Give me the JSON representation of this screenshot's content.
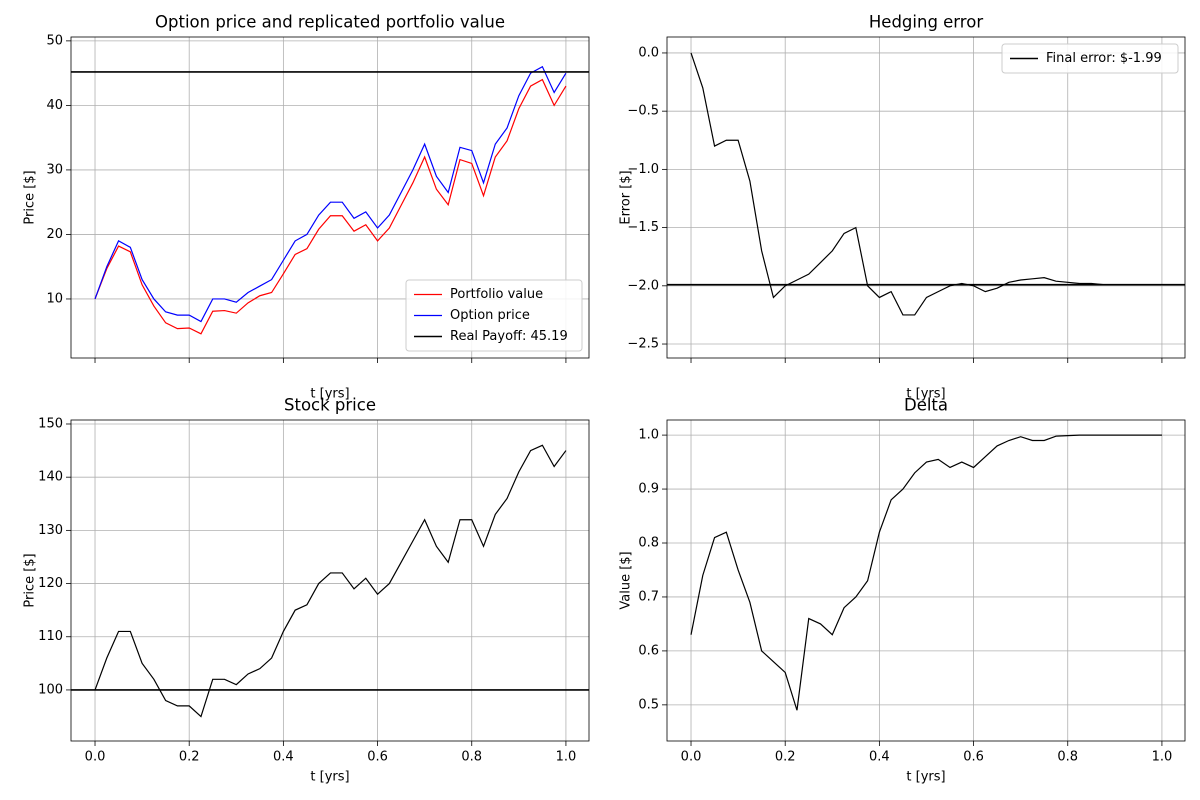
{
  "chart_data": [
    {
      "type": "line",
      "title": "Option price and replicated portfolio value",
      "xlabel": "t [yrs]",
      "ylabel": "Price [$]",
      "x": [
        0,
        0.025,
        0.05,
        0.075,
        0.1,
        0.125,
        0.15,
        0.175,
        0.2,
        0.225,
        0.25,
        0.275,
        0.3,
        0.325,
        0.35,
        0.375,
        0.4,
        0.425,
        0.45,
        0.475,
        0.5,
        0.525,
        0.55,
        0.575,
        0.6,
        0.625,
        0.65,
        0.675,
        0.7,
        0.725,
        0.75,
        0.775,
        0.8,
        0.825,
        0.85,
        0.875,
        0.9,
        0.925,
        0.95,
        0.975,
        1.0
      ],
      "series": [
        {
          "name": "Portfolio value",
          "color": "#ff0000",
          "values": [
            10,
            14.7,
            18.2,
            17.3,
            12.2,
            8.9,
            6.3,
            5.4,
            5.5,
            4.6,
            8.1,
            8.2,
            7.8,
            9.4,
            10.5,
            11,
            13.9,
            16.9,
            17.8,
            20.8,
            22.9,
            22.9,
            20.5,
            21.5,
            19,
            21,
            24.5,
            28,
            32,
            27,
            24.6,
            31.6,
            31,
            26,
            32,
            34.5,
            39.5,
            43,
            44,
            40,
            43
          ]
        },
        {
          "name": "Option price",
          "color": "#0000ff",
          "values": [
            10,
            15,
            19,
            18,
            13,
            10,
            8,
            7.5,
            7.5,
            6.5,
            10,
            10,
            9.5,
            11,
            12,
            13,
            16,
            19,
            20,
            23,
            25,
            25,
            22.5,
            23.5,
            21,
            23,
            26.5,
            30,
            34,
            29,
            26.5,
            33.5,
            33,
            28,
            34,
            36.5,
            41.5,
            45,
            46,
            42,
            45
          ]
        }
      ],
      "hlines": [
        {
          "name": "Real Payoff: 45.19",
          "value": 45.19,
          "color": "#000000"
        }
      ],
      "legend": "lower right",
      "grid": true,
      "show_xtick_labels": false,
      "xlim": [
        -0.051,
        1.049
      ],
      "xticks": [
        0,
        0.2,
        0.4,
        0.6,
        0.8,
        1
      ],
      "ylim": [
        0.85,
        50.6
      ],
      "yticks": [
        10,
        20,
        30,
        40,
        50
      ]
    },
    {
      "type": "line",
      "title": "Hedging error",
      "xlabel": "t [yrs]",
      "ylabel": "Error [$]",
      "x": [
        0,
        0.025,
        0.05,
        0.075,
        0.1,
        0.125,
        0.15,
        0.175,
        0.2,
        0.225,
        0.25,
        0.275,
        0.3,
        0.325,
        0.35,
        0.375,
        0.4,
        0.425,
        0.45,
        0.475,
        0.5,
        0.525,
        0.55,
        0.575,
        0.6,
        0.625,
        0.65,
        0.675,
        0.7,
        0.725,
        0.75,
        0.775,
        0.8,
        0.825,
        0.85,
        0.875,
        0.9,
        0.925,
        0.95,
        0.975,
        1.0
      ],
      "series": [
        {
          "color": "#000000",
          "values": [
            0,
            -0.3,
            -0.8,
            -0.75,
            -0.75,
            -1.1,
            -1.7,
            -2.1,
            -2.0,
            -1.95,
            -1.9,
            -1.8,
            -1.7,
            -1.55,
            -1.5,
            -2.0,
            -2.1,
            -2.05,
            -2.25,
            -2.25,
            -2.1,
            -2.05,
            -2.0,
            -1.98,
            -2.0,
            -2.05,
            -2.02,
            -1.97,
            -1.95,
            -1.94,
            -1.93,
            -1.96,
            -1.97,
            -1.98,
            -1.98,
            -1.99,
            -1.99,
            -1.99,
            -1.99,
            -1.99,
            -1.99
          ]
        }
      ],
      "hlines": [
        {
          "name": "Final error: $-1.99",
          "value": -1.99,
          "color": "#000000"
        }
      ],
      "legend": "upper right",
      "grid": true,
      "show_xtick_labels": false,
      "xlim": [
        -0.051,
        1.049
      ],
      "xticks": [
        0,
        0.2,
        0.4,
        0.6,
        0.8,
        1
      ],
      "ylim": [
        -2.62,
        0.137
      ],
      "yticks": [
        {
          "value": 0,
          "label": "0.0"
        },
        {
          "value": -0.5,
          "label": "−0.5"
        },
        {
          "value": -1,
          "label": "−1.0"
        },
        {
          "value": -1.5,
          "label": "−1.5"
        },
        {
          "value": -2,
          "label": "−2.0"
        },
        {
          "value": -2.5,
          "label": "−2.5"
        }
      ]
    },
    {
      "type": "line",
      "title": "Stock price",
      "xlabel": "t [yrs]",
      "ylabel": "Price [$]",
      "x": [
        0,
        0.025,
        0.05,
        0.075,
        0.1,
        0.125,
        0.15,
        0.175,
        0.2,
        0.225,
        0.25,
        0.275,
        0.3,
        0.325,
        0.35,
        0.375,
        0.4,
        0.425,
        0.45,
        0.475,
        0.5,
        0.525,
        0.55,
        0.575,
        0.6,
        0.625,
        0.65,
        0.675,
        0.7,
        0.725,
        0.75,
        0.775,
        0.8,
        0.825,
        0.85,
        0.875,
        0.9,
        0.925,
        0.95,
        0.975,
        1.0
      ],
      "series": [
        {
          "color": "#000000",
          "values": [
            100,
            106,
            111,
            111,
            105,
            102,
            98,
            97,
            97,
            95,
            102,
            102,
            101,
            103,
            104,
            106,
            111,
            115,
            116,
            120,
            122,
            122,
            119,
            121,
            118,
            120,
            124,
            128,
            132,
            127,
            124,
            132,
            132,
            127,
            133,
            136,
            141,
            145,
            146,
            142,
            145
          ]
        }
      ],
      "hlines": [
        {
          "value": 100,
          "color": "#000000"
        }
      ],
      "grid": true,
      "show_xtick_labels": true,
      "xlim": [
        -0.051,
        1.049
      ],
      "xticks": [
        {
          "value": 0,
          "label": "0.0"
        },
        0.2,
        0.4,
        0.6,
        0.8,
        {
          "value": 1,
          "label": "1.0"
        }
      ],
      "ylim": [
        90.4,
        150.75
      ],
      "yticks": [
        100,
        110,
        120,
        130,
        140,
        150
      ]
    },
    {
      "type": "line",
      "title": "Delta",
      "xlabel": "t [yrs]",
      "ylabel": "Value [$]",
      "x": [
        0,
        0.025,
        0.05,
        0.075,
        0.1,
        0.125,
        0.15,
        0.175,
        0.2,
        0.225,
        0.25,
        0.275,
        0.3,
        0.325,
        0.35,
        0.375,
        0.4,
        0.425,
        0.45,
        0.475,
        0.5,
        0.525,
        0.55,
        0.575,
        0.6,
        0.625,
        0.65,
        0.675,
        0.7,
        0.725,
        0.75,
        0.775,
        0.8,
        0.825,
        0.85,
        0.875,
        0.9,
        0.925,
        0.95,
        0.975,
        1.0
      ],
      "series": [
        {
          "color": "#000000",
          "values": [
            0.63,
            0.74,
            0.81,
            0.82,
            0.75,
            0.69,
            0.6,
            0.58,
            0.56,
            0.49,
            0.66,
            0.65,
            0.63,
            0.68,
            0.7,
            0.73,
            0.82,
            0.88,
            0.9,
            0.93,
            0.95,
            0.955,
            0.94,
            0.95,
            0.94,
            0.96,
            0.98,
            0.99,
            0.997,
            0.99,
            0.99,
            0.998,
            0.999,
            1.0,
            1.0,
            1.0,
            1.0,
            1.0,
            1.0,
            1.0,
            1.0
          ]
        }
      ],
      "grid": true,
      "show_xtick_labels": true,
      "xlim": [
        -0.051,
        1.049
      ],
      "xticks": [
        {
          "value": 0,
          "label": "0.0"
        },
        0.2,
        0.4,
        0.6,
        0.8,
        {
          "value": 1,
          "label": "1.0"
        }
      ],
      "ylim": [
        0.433,
        1.028
      ],
      "yticks": [
        0.5,
        0.6,
        0.7,
        0.8,
        0.9,
        {
          "value": 1,
          "label": "1.0"
        }
      ]
    }
  ]
}
